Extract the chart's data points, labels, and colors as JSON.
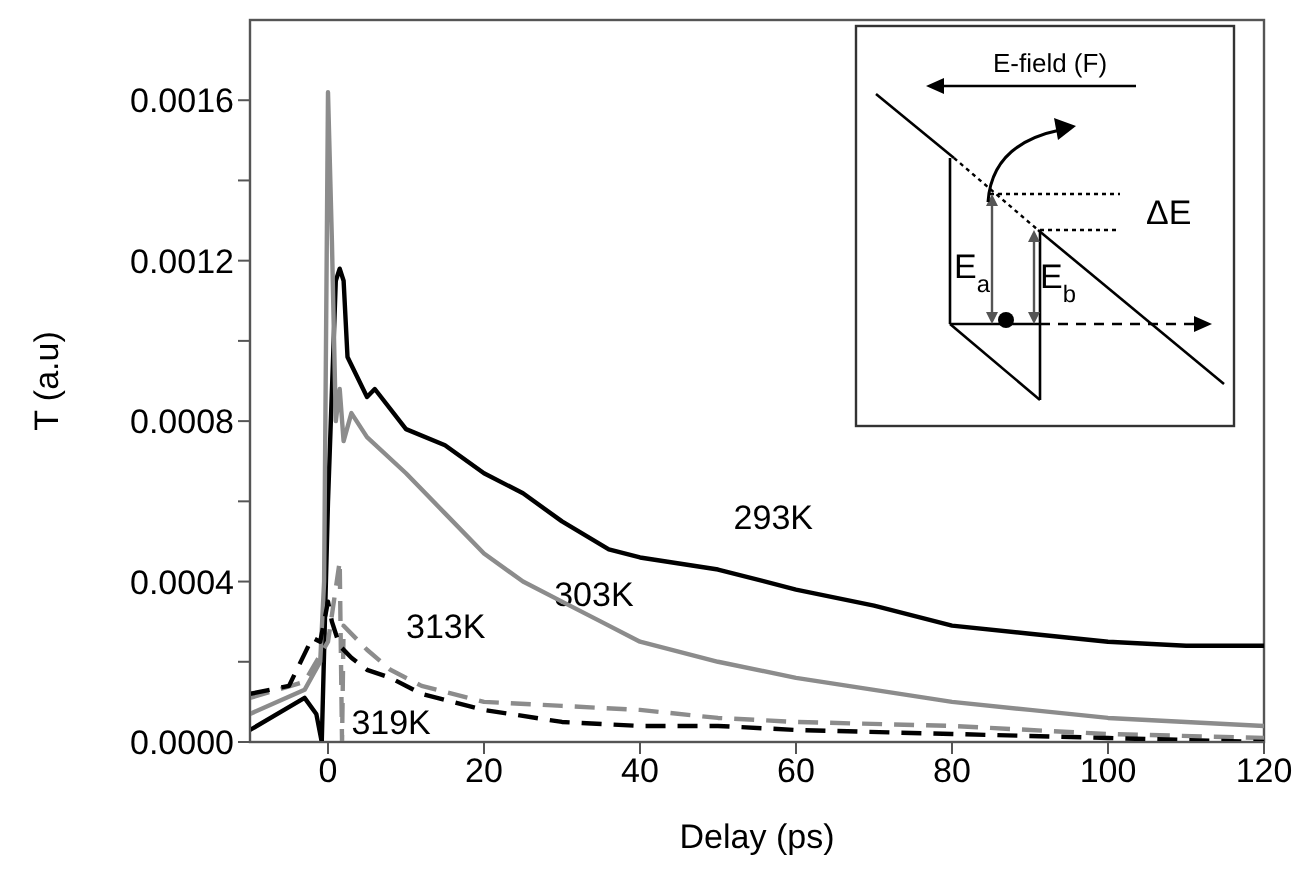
{
  "chart_data": {
    "type": "line",
    "xlabel": "Delay (ps)",
    "ylabel": "T (a.u)",
    "xlim": [
      -10,
      120
    ],
    "ylim": [
      0,
      0.0018
    ],
    "xticks": [
      0,
      20,
      40,
      60,
      80,
      100,
      120
    ],
    "yticks": [
      {
        "value": 0,
        "label": "0.0000"
      },
      {
        "value": 0.0002,
        "label": null
      },
      0.0004,
      {
        "value": 0.0006,
        "label": null
      },
      0.0008,
      {
        "value": 0.001,
        "label": null
      },
      0.0012,
      {
        "value": 0.0014,
        "label": null
      },
      0.0016
    ],
    "grid": false,
    "legend": false,
    "marker": "none",
    "series": [
      {
        "name": "293K",
        "color": "#000000",
        "line_style": "solid",
        "x": [
          -10,
          -3,
          -1.5,
          -0.8,
          0,
          1,
          1.5,
          2,
          2.5,
          5,
          6,
          10,
          15,
          20,
          25,
          30,
          36,
          40,
          50,
          60,
          70,
          80,
          90,
          100,
          110,
          120
        ],
        "values": [
          3e-05,
          0.00011,
          7e-05,
          0,
          0.0006,
          0.00115,
          0.00118,
          0.00115,
          0.00096,
          0.00086,
          0.00088,
          0.00078,
          0.00074,
          0.00067,
          0.00062,
          0.00055,
          0.00048,
          0.00046,
          0.00043,
          0.00038,
          0.00034,
          0.00029,
          0.00027,
          0.00025,
          0.00024,
          0.00024
        ]
      },
      {
        "name": "303K",
        "color": "#8c8c8c",
        "line_style": "solid",
        "x": [
          -10,
          -3,
          -1,
          -0.5,
          0,
          0.5,
          1,
          1.5,
          2,
          3,
          5,
          10,
          15,
          20,
          25,
          30,
          35,
          40,
          50,
          60,
          70,
          80,
          90,
          100,
          110,
          120
        ],
        "values": [
          7e-05,
          0.00013,
          0.0002,
          0.0004,
          0.00162,
          0.00125,
          0.0008,
          0.00088,
          0.00075,
          0.00082,
          0.00076,
          0.00067,
          0.00057,
          0.00047,
          0.0004,
          0.00035,
          0.0003,
          0.00025,
          0.0002,
          0.00016,
          0.00013,
          0.0001,
          8e-05,
          6e-05,
          5e-05,
          4e-05
        ]
      },
      {
        "name": "313K",
        "color": "#8c8c8c",
        "line_style": "dashed",
        "x": [
          -10,
          -3,
          0,
          1.5,
          1.8,
          2,
          5,
          8,
          12,
          20,
          30,
          40,
          50,
          60,
          80,
          100,
          120
        ],
        "values": [
          0.00011,
          0.00015,
          0.00025,
          0.00045,
          0,
          0.00029,
          0.00023,
          0.00018,
          0.00014,
          0.0001,
          9e-05,
          8e-05,
          6e-05,
          5e-05,
          4e-05,
          2e-05,
          1e-05
        ]
      },
      {
        "name": "319K",
        "color": "#000000",
        "line_style": "dashed",
        "x": [
          -10,
          -5,
          -2,
          -1,
          0,
          0.5,
          1.5,
          3,
          5,
          8,
          12,
          20,
          30,
          40,
          50,
          60,
          80,
          100,
          120
        ],
        "values": [
          0.00012,
          0.00014,
          0.00026,
          0.00025,
          0.00035,
          0.0003,
          0.00024,
          0.00021,
          0.00018,
          0.00016,
          0.00012,
          8e-05,
          5e-05,
          4e-05,
          4e-05,
          3e-05,
          2e-05,
          1e-05,
          0
        ]
      }
    ],
    "annotations": [
      "E-field (F)",
      "ΔE",
      "E$_{a}$",
      "E$_{b}$"
    ]
  }
}
